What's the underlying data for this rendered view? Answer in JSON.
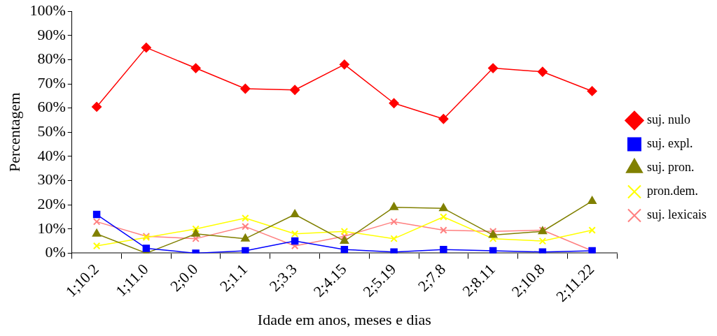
{
  "chart_data": {
    "type": "line",
    "xlabel": "Idade em anos, meses e dias",
    "ylabel": "Percentagem",
    "categories": [
      "1;10.2",
      "1;11.0",
      "2;0.0",
      "2;1.1",
      "2;3.3",
      "2;4.15",
      "2;5.19",
      "2;7.8",
      "2;8.11",
      "2;10.8",
      "2;11.22"
    ],
    "ylim": [
      0,
      100
    ],
    "yticks": [
      {
        "value": 0,
        "label": "0%"
      },
      {
        "value": 10,
        "label": "10%"
      },
      {
        "value": 20,
        "label": "20%"
      },
      {
        "value": 30,
        "label": "30%"
      },
      {
        "value": 40,
        "label": "40%"
      },
      {
        "value": 50,
        "label": "50%"
      },
      {
        "value": 60,
        "label": "60%"
      },
      {
        "value": 70,
        "label": "70%"
      },
      {
        "value": 80,
        "label": "80%"
      },
      {
        "value": 90,
        "label": "90%"
      },
      {
        "value": 100,
        "label": "100%"
      }
    ],
    "grid": false,
    "legend": "right",
    "line_style": "solid",
    "series": [
      {
        "name": "suj. nulo",
        "color": "#ff0000",
        "marker": "diamond",
        "values": [
          60.5,
          85,
          76.5,
          68,
          67.5,
          78,
          62,
          55.5,
          76.5,
          75,
          67
        ]
      },
      {
        "name": "suj. expl.",
        "color": "#0000ff",
        "marker": "square",
        "values": [
          16,
          2,
          0,
          1,
          5,
          1.5,
          0.5,
          1.5,
          1,
          0.5,
          1
        ]
      },
      {
        "name": "suj. pron.",
        "color": "#808000",
        "marker": "triangle",
        "values": [
          8,
          0,
          8,
          6,
          16,
          5,
          19,
          18.5,
          7.5,
          9,
          21.5
        ]
      },
      {
        "name": "pron.dem.",
        "color": "#ffff00",
        "marker": "cross",
        "values": [
          3,
          6.5,
          10,
          14.5,
          8,
          9,
          6,
          15,
          6,
          5,
          9.5
        ]
      },
      {
        "name": "suj. lexicais",
        "color": "#ff8080",
        "marker": "cross",
        "values": [
          13,
          7,
          6,
          11,
          3,
          7,
          13,
          9.5,
          9,
          9.5,
          1
        ]
      }
    ]
  }
}
